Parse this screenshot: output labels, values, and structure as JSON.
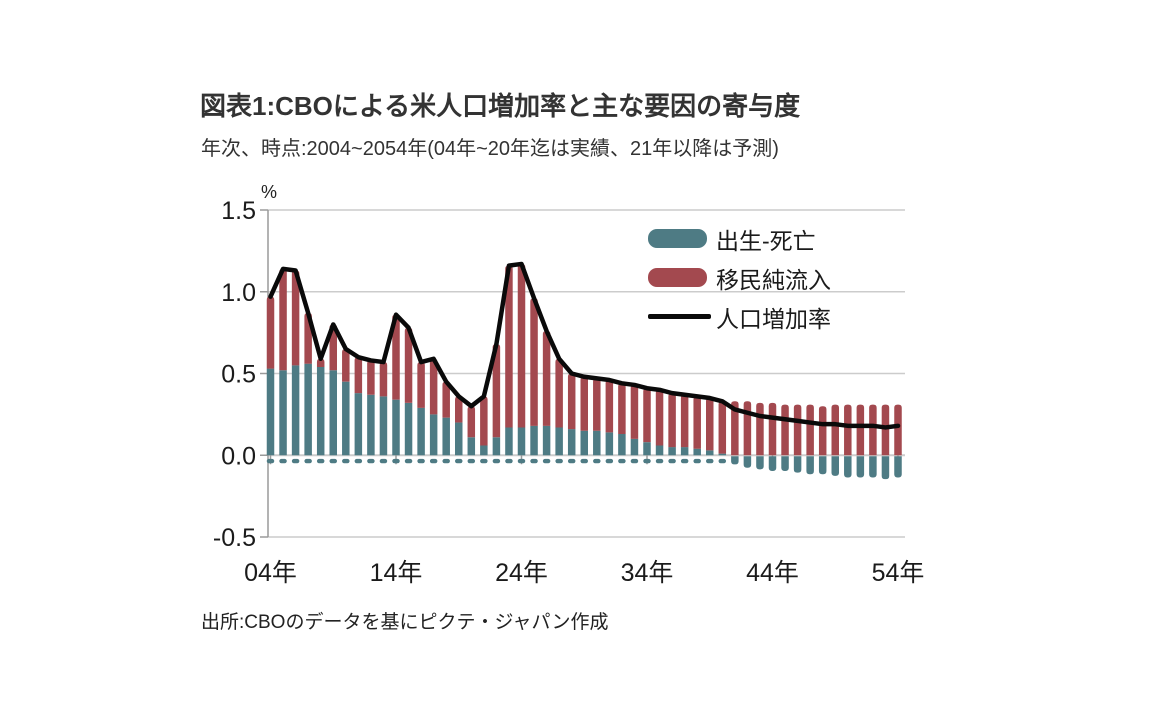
{
  "page": {
    "title": "図表1:CBOによる米人口増加率と主な要因の寄与度",
    "subtitle": "年次、時点:2004~2054年(04年~20年迄は実績、21年以降は予測)",
    "unit_label": "%",
    "source": "出所:CBOのデータを基にピクテ・ジャパン作成"
  },
  "colors": {
    "births_deaths": "#4e7b84",
    "net_immigration": "#a3494f",
    "growth_line": "#0a0a0a",
    "grid": "#cccccc",
    "axis": "#9a9a9a",
    "text": "#1b1b1b"
  },
  "chart_data": {
    "type": "bar",
    "title": "図表1:CBOによる米人口増加率と主な要因の寄与度",
    "subtitle": "年次、時点:2004~2054年(04年~20年迄は実績、21年以降は予測)",
    "ylabel": "%",
    "ylim": [
      -0.5,
      1.5
    ],
    "grid": true,
    "legend_position": "inside-top-right",
    "x": [
      2004,
      2005,
      2006,
      2007,
      2008,
      2009,
      2010,
      2011,
      2012,
      2013,
      2014,
      2015,
      2016,
      2017,
      2018,
      2019,
      2020,
      2021,
      2022,
      2023,
      2024,
      2025,
      2026,
      2027,
      2028,
      2029,
      2030,
      2031,
      2032,
      2033,
      2034,
      2035,
      2036,
      2037,
      2038,
      2039,
      2040,
      2041,
      2042,
      2043,
      2044,
      2045,
      2046,
      2047,
      2048,
      2049,
      2050,
      2051,
      2052,
      2053,
      2054
    ],
    "series": [
      {
        "name": "出生-死亡",
        "type": "bar",
        "color": "#4e7b84",
        "values": [
          0.53,
          0.52,
          0.55,
          0.56,
          0.54,
          0.52,
          0.45,
          0.38,
          0.37,
          0.36,
          0.34,
          0.32,
          0.29,
          0.25,
          0.23,
          0.2,
          0.11,
          0.06,
          0.11,
          0.17,
          0.17,
          0.18,
          0.18,
          0.17,
          0.16,
          0.15,
          0.15,
          0.14,
          0.13,
          0.1,
          0.08,
          0.06,
          0.05,
          0.05,
          0.04,
          0.03,
          0.01,
          -0.05,
          -0.07,
          -0.08,
          -0.09,
          -0.09,
          -0.1,
          -0.11,
          -0.11,
          -0.12,
          -0.13,
          -0.13,
          -0.13,
          -0.14,
          -0.13
        ]
      },
      {
        "name": "移民純流入",
        "type": "bar",
        "color": "#a3494f",
        "values": [
          0.44,
          0.62,
          0.58,
          0.31,
          0.05,
          0.28,
          0.2,
          0.22,
          0.21,
          0.21,
          0.52,
          0.46,
          0.28,
          0.34,
          0.22,
          0.16,
          0.19,
          0.3,
          0.57,
          0.99,
          1.0,
          0.78,
          0.58,
          0.42,
          0.34,
          0.33,
          0.32,
          0.32,
          0.31,
          0.33,
          0.33,
          0.34,
          0.33,
          0.32,
          0.32,
          0.32,
          0.32,
          0.33,
          0.33,
          0.32,
          0.32,
          0.31,
          0.31,
          0.31,
          0.3,
          0.31,
          0.31,
          0.31,
          0.31,
          0.31,
          0.31
        ]
      },
      {
        "name": "人口増加率",
        "type": "line",
        "color": "#0a0a0a",
        "values": [
          0.97,
          1.14,
          1.13,
          0.87,
          0.59,
          0.8,
          0.65,
          0.6,
          0.58,
          0.57,
          0.86,
          0.78,
          0.57,
          0.59,
          0.45,
          0.36,
          0.3,
          0.36,
          0.68,
          1.16,
          1.17,
          0.96,
          0.76,
          0.59,
          0.5,
          0.48,
          0.47,
          0.46,
          0.44,
          0.43,
          0.41,
          0.4,
          0.38,
          0.37,
          0.36,
          0.35,
          0.33,
          0.28,
          0.26,
          0.24,
          0.23,
          0.22,
          0.21,
          0.2,
          0.19,
          0.19,
          0.18,
          0.18,
          0.18,
          0.17,
          0.18
        ]
      }
    ],
    "y_ticks": {
      "values": [
        1.5,
        1.0,
        0.5,
        0.0,
        -0.5
      ],
      "labels": [
        "1.5",
        "1.0",
        "0.5",
        "0.0",
        "-0.5"
      ]
    },
    "x_ticks": {
      "years": [
        2004,
        2014,
        2024,
        2034,
        2044,
        2054
      ],
      "labels": [
        "04年",
        "14年",
        "24年",
        "34年",
        "44年",
        "54年"
      ]
    }
  }
}
